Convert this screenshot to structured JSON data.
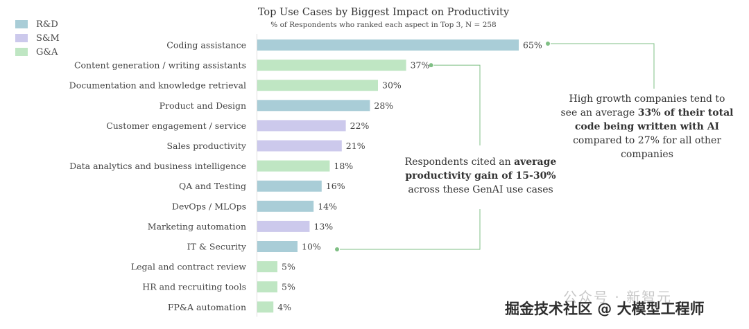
{
  "chart_data": {
    "type": "bar",
    "orientation": "horizontal",
    "title": "Top Use Cases by Biggest Impact on Productivity",
    "subtitle": "% of Respondents who ranked each aspect in Top 3, N = 258",
    "categories": [
      "Coding assistance",
      "Content generation / writing assistants",
      "Documentation and knowledge retrieval",
      "Product and Design",
      "Customer engagement / service",
      "Sales productivity",
      "Data analytics and business intelligence",
      "QA and Testing",
      "DevOps / MLOps",
      "Marketing automation",
      "IT & Security",
      "Legal and contract review",
      "HR and recruiting tools",
      "FP&A automation"
    ],
    "values": [
      65,
      37,
      30,
      28,
      22,
      21,
      18,
      16,
      14,
      13,
      10,
      5,
      5,
      4
    ],
    "value_labels": [
      "65%",
      "37%",
      "30%",
      "28%",
      "22%",
      "21%",
      "18%",
      "16%",
      "14%",
      "13%",
      "10%",
      "5%",
      "5%",
      "4%"
    ],
    "groups": [
      "R&D",
      "G&A",
      "G&A",
      "R&D",
      "S&M",
      "S&M",
      "G&A",
      "R&D",
      "R&D",
      "S&M",
      "R&D",
      "G&A",
      "G&A",
      "G&A"
    ],
    "legend": [
      {
        "name": "R&D",
        "color": "#a9cdd7"
      },
      {
        "name": "S&M",
        "color": "#ccc9ec"
      },
      {
        "name": "G&A",
        "color": "#bfe6c3"
      }
    ],
    "legend_position": "top-left",
    "xlim": [
      0,
      65
    ],
    "grid": false,
    "annotations": [
      {
        "parts": [
          {
            "text": "High growth companies tend to see an average ",
            "bold": false
          },
          {
            "text": "33% of their total code being written with AI",
            "bold": true
          },
          {
            "text": " compared to 27% for all other companies",
            "bold": false
          }
        ]
      },
      {
        "parts": [
          {
            "text": "Respondents cited an ",
            "bold": false
          },
          {
            "text": "average productivity gain of 15-30%",
            "bold": true
          },
          {
            "text": " across these GenAI use cases",
            "bold": false
          }
        ]
      }
    ],
    "connector_color": "#7fbf84"
  },
  "watermark": {
    "line1": "公众号 · 新智元",
    "line2": "掘金技术社区 @ 大模型工程师"
  }
}
